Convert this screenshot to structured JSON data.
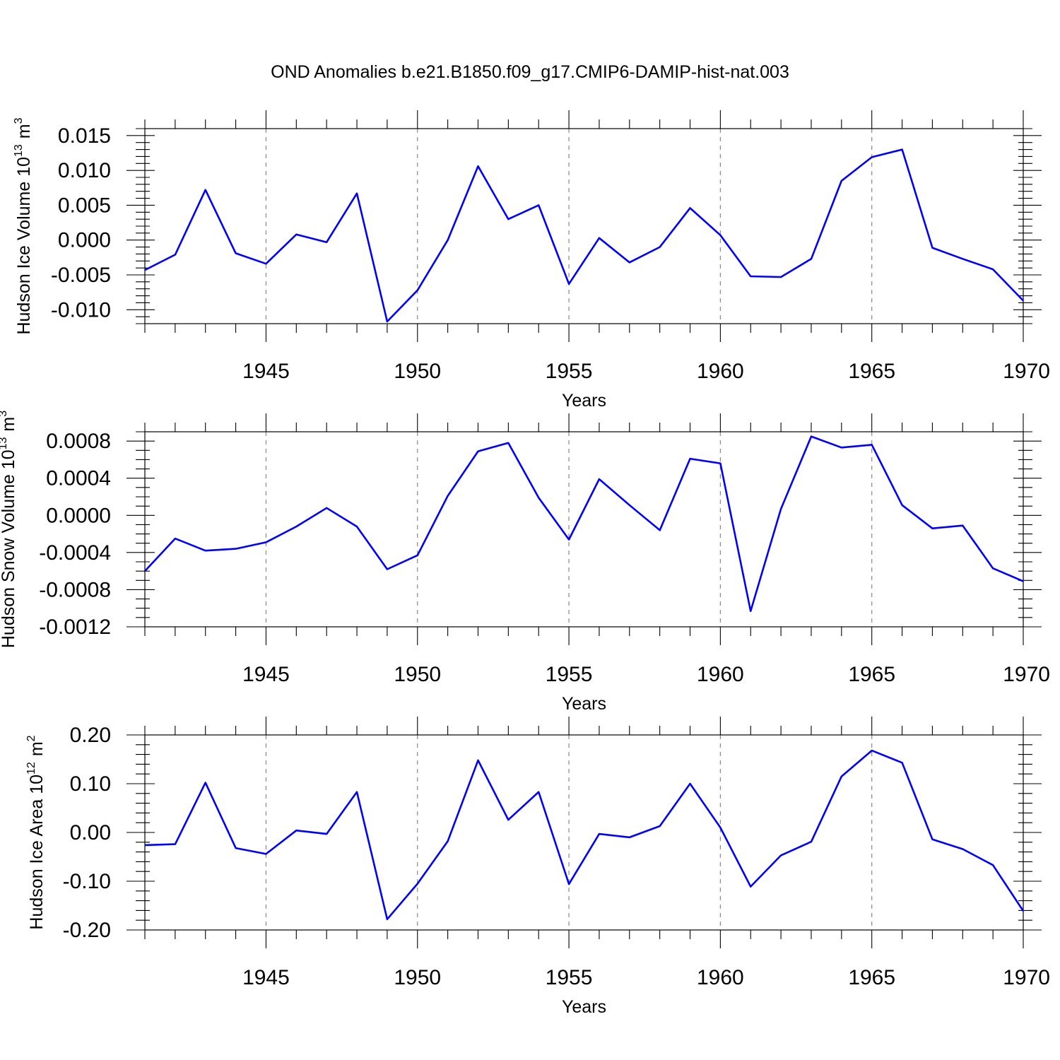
{
  "title": "OND Anomalies b.e21.B1850.f09_g17.CMIP6-DAMIP-hist-nat.003",
  "colors": {
    "series": "#0000ff",
    "axis": "#000000",
    "grid": "#888888"
  },
  "chart_data": [
    {
      "type": "line",
      "ylabel_main": "Hudson Ice Volume 10",
      "ylabel_exp": "13",
      "ylabel_unit": "m",
      "ylabel_unit_exp": "3",
      "xlabel": "Years",
      "xlim": [
        1941,
        1970
      ],
      "ylim": [
        -0.012,
        0.016
      ],
      "xticks": [
        1945,
        1950,
        1955,
        1960,
        1965,
        1970
      ],
      "xtick_labels": [
        "1945",
        "1950",
        "1955",
        "1960",
        "1965",
        "1970"
      ],
      "yticks": [
        -0.01,
        -0.005,
        0.0,
        0.005,
        0.01,
        0.015
      ],
      "ytick_labels": [
        "-0.010",
        "-0.005",
        "0.000",
        "0.005",
        "0.010",
        "0.015"
      ],
      "yminor_step": 0.001,
      "grid": "dashed vertical at major x ticks",
      "x": [
        1941,
        1942,
        1943,
        1944,
        1945,
        1946,
        1947,
        1948,
        1949,
        1950,
        1951,
        1952,
        1953,
        1954,
        1955,
        1956,
        1957,
        1958,
        1959,
        1960,
        1961,
        1962,
        1963,
        1964,
        1965,
        1966,
        1967,
        1968,
        1969,
        1970
      ],
      "values": [
        -0.0043,
        -0.0021,
        0.0072,
        -0.0019,
        -0.0034,
        0.0008,
        -0.0003,
        0.0067,
        -0.0117,
        -0.0072,
        0.0,
        0.0106,
        0.003,
        0.005,
        -0.0063,
        0.0003,
        -0.0032,
        -0.001,
        0.0046,
        0.0007,
        -0.0052,
        -0.0053,
        -0.0027,
        0.0085,
        0.0119,
        0.013,
        -0.0011,
        -0.0027,
        -0.0042,
        -0.0087
      ]
    },
    {
      "type": "line",
      "ylabel_main": "Hudson Snow Volume 10",
      "ylabel_exp": "13",
      "ylabel_unit": "m",
      "ylabel_unit_exp": "3",
      "xlabel": "Years",
      "xlim": [
        1941,
        1970
      ],
      "ylim": [
        -0.0012,
        0.0009
      ],
      "xticks": [
        1945,
        1950,
        1955,
        1960,
        1965,
        1970
      ],
      "xtick_labels": [
        "1945",
        "1950",
        "1955",
        "1960",
        "1965",
        "1970"
      ],
      "yticks": [
        -0.0012,
        -0.0008,
        -0.0004,
        0.0,
        0.0004,
        0.0008
      ],
      "ytick_labels": [
        "-0.0012",
        "-0.0008",
        "-0.0004",
        "0.0000",
        "0.0004",
        "0.0008"
      ],
      "yminor_step": 0.0001,
      "grid": "dashed vertical at major x ticks",
      "x": [
        1941,
        1942,
        1943,
        1944,
        1945,
        1946,
        1947,
        1948,
        1949,
        1950,
        1951,
        1952,
        1953,
        1954,
        1955,
        1956,
        1957,
        1958,
        1959,
        1960,
        1961,
        1962,
        1963,
        1964,
        1965,
        1966,
        1967,
        1968,
        1969,
        1970
      ],
      "values": [
        -0.0006,
        -0.00025,
        -0.00038,
        -0.00036,
        -0.00029,
        -0.00012,
        8e-05,
        -0.00012,
        -0.00058,
        -0.00043,
        0.00021,
        0.00069,
        0.00078,
        0.00019,
        -0.00026,
        0.00039,
        0.00011,
        -0.00016,
        0.00061,
        0.00056,
        -0.00103,
        7e-05,
        0.00085,
        0.00073,
        0.00076,
        0.00011,
        -0.00014,
        -0.00011,
        -0.00057,
        -0.00071
      ]
    },
    {
      "type": "line",
      "ylabel_main": "Hudson Ice Area 10",
      "ylabel_exp": "12",
      "ylabel_unit": "m",
      "ylabel_unit_exp": "2",
      "xlabel": "Years",
      "xlim": [
        1941,
        1970
      ],
      "ylim": [
        -0.2,
        0.2
      ],
      "xticks": [
        1945,
        1950,
        1955,
        1960,
        1965,
        1970
      ],
      "xtick_labels": [
        "1945",
        "1950",
        "1955",
        "1960",
        "1965",
        "1970"
      ],
      "yticks": [
        -0.2,
        -0.1,
        0.0,
        0.1,
        0.2
      ],
      "ytick_labels": [
        "-0.20",
        "-0.10",
        "0.00",
        "0.10",
        "0.20"
      ],
      "yminor_step": 0.02,
      "grid": "dashed vertical at major x ticks",
      "x": [
        1941,
        1942,
        1943,
        1944,
        1945,
        1946,
        1947,
        1948,
        1949,
        1950,
        1951,
        1952,
        1953,
        1954,
        1955,
        1956,
        1957,
        1958,
        1959,
        1960,
        1961,
        1962,
        1963,
        1964,
        1965,
        1966,
        1967,
        1968,
        1969,
        1970
      ],
      "values": [
        -0.026,
        -0.024,
        0.102,
        -0.032,
        -0.044,
        0.004,
        -0.003,
        0.083,
        -0.178,
        -0.105,
        -0.018,
        0.148,
        0.026,
        0.083,
        -0.106,
        -0.003,
        -0.01,
        0.013,
        0.1,
        0.01,
        -0.111,
        -0.047,
        -0.019,
        0.115,
        0.168,
        0.143,
        -0.014,
        -0.034,
        -0.067,
        -0.161
      ]
    }
  ]
}
